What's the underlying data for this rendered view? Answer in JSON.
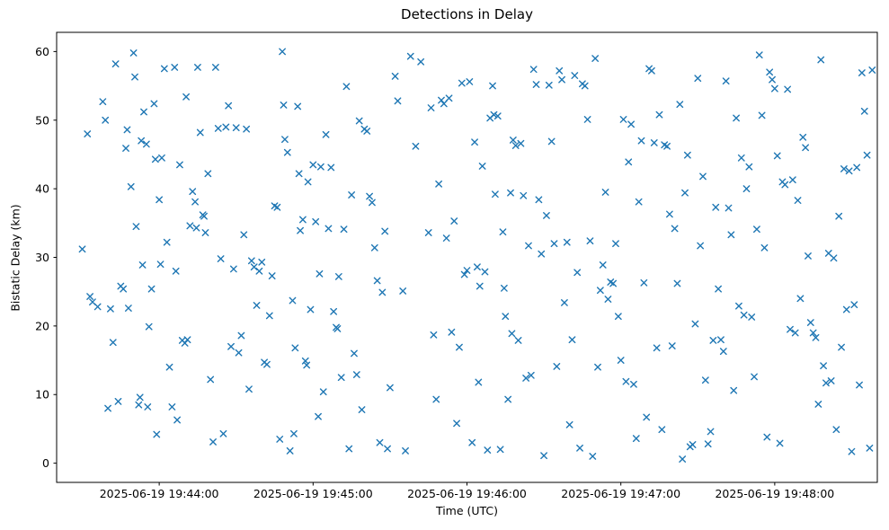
{
  "chart_data": {
    "type": "scatter",
    "title": "Detections in Delay",
    "xlabel": "Time (UTC)",
    "ylabel": "Bistatic Delay (km)",
    "marker": "x",
    "marker_color": "#1f77b4",
    "legend": "none",
    "grid": false,
    "x_axis": {
      "unit": "seconds after 2025-06-19 19:43:00 UTC",
      "range": [
        20,
        340
      ],
      "tick_values": [
        60,
        120,
        180,
        240,
        300
      ],
      "tick_labels": [
        "2025-06-19 19:44:00",
        "2025-06-19 19:45:00",
        "2025-06-19 19:46:00",
        "2025-06-19 19:47:00",
        "2025-06-19 19:48:00"
      ]
    },
    "y_axis": {
      "range": [
        -2.8,
        62.8
      ],
      "tick_values": [
        0,
        10,
        20,
        30,
        40,
        50,
        60
      ],
      "tick_labels": [
        "0",
        "10",
        "20",
        "30",
        "40",
        "50",
        "60"
      ]
    },
    "points_format": "[seconds_after_19:43:00, bistatic_delay_km]",
    "points": [
      [
        30,
        31.2
      ],
      [
        32,
        48
      ],
      [
        33,
        24.3
      ],
      [
        34,
        23.5
      ],
      [
        36,
        22.8
      ],
      [
        38,
        52.7
      ],
      [
        39,
        50
      ],
      [
        40,
        8
      ],
      [
        41,
        22.5
      ],
      [
        42,
        17.6
      ],
      [
        43,
        58.2
      ],
      [
        44,
        9
      ],
      [
        45,
        25.8
      ],
      [
        46,
        25.4
      ],
      [
        47,
        45.9
      ],
      [
        47.5,
        48.6
      ],
      [
        48,
        22.6
      ],
      [
        49,
        40.3
      ],
      [
        50,
        59.8
      ],
      [
        50.5,
        56.3
      ],
      [
        51,
        34.5
      ],
      [
        52,
        8.5
      ],
      [
        52.5,
        9.6
      ],
      [
        53,
        47
      ],
      [
        53.5,
        28.9
      ],
      [
        54,
        51.2
      ],
      [
        55,
        46.5
      ],
      [
        55.5,
        8.2
      ],
      [
        56,
        19.9
      ],
      [
        57,
        25.4
      ],
      [
        58,
        52.4
      ],
      [
        58.5,
        44.3
      ],
      [
        59,
        4.2
      ],
      [
        60,
        38.4
      ],
      [
        60.5,
        29
      ],
      [
        61,
        44.5
      ],
      [
        62,
        57.5
      ],
      [
        63,
        32.2
      ],
      [
        64,
        14
      ],
      [
        65,
        8.2
      ],
      [
        66,
        57.7
      ],
      [
        66.5,
        28
      ],
      [
        67,
        6.3
      ],
      [
        68,
        43.5
      ],
      [
        69,
        17.9
      ],
      [
        70,
        17.5
      ],
      [
        70.5,
        53.4
      ],
      [
        71,
        18
      ],
      [
        72,
        34.6
      ],
      [
        73,
        39.6
      ],
      [
        74,
        38.1
      ],
      [
        74.5,
        34.3
      ],
      [
        75,
        57.7
      ],
      [
        76,
        48.2
      ],
      [
        77,
        36.2
      ],
      [
        77.5,
        36
      ],
      [
        78,
        33.6
      ],
      [
        79,
        42.2
      ],
      [
        80,
        12.2
      ],
      [
        81,
        3.1
      ],
      [
        82,
        57.7
      ],
      [
        83,
        48.8
      ],
      [
        84,
        29.8
      ],
      [
        85,
        4.3
      ],
      [
        86,
        49
      ],
      [
        87,
        52.1
      ],
      [
        88,
        17
      ],
      [
        89,
        28.3
      ],
      [
        90,
        48.9
      ],
      [
        91,
        16.1
      ],
      [
        92,
        18.6
      ],
      [
        93,
        33.3
      ],
      [
        94,
        48.7
      ],
      [
        95,
        10.8
      ],
      [
        96,
        29.5
      ],
      [
        97,
        28.6
      ],
      [
        98,
        23
      ],
      [
        99,
        28
      ],
      [
        100,
        29.3
      ],
      [
        101,
        14.7
      ],
      [
        102,
        14.4
      ],
      [
        103,
        21.5
      ],
      [
        104,
        27.3
      ],
      [
        105,
        37.5
      ],
      [
        106,
        37.3
      ],
      [
        107,
        3.5
      ],
      [
        108,
        60
      ],
      [
        108.5,
        52.2
      ],
      [
        109,
        47.2
      ],
      [
        110,
        45.3
      ],
      [
        111,
        1.8
      ],
      [
        112,
        23.7
      ],
      [
        112.5,
        4.3
      ],
      [
        113,
        16.8
      ],
      [
        114,
        52
      ],
      [
        114.5,
        42.2
      ],
      [
        115,
        33.9
      ],
      [
        116,
        35.5
      ],
      [
        117,
        14.9
      ],
      [
        117.5,
        14.3
      ],
      [
        118,
        41
      ],
      [
        119,
        22.4
      ],
      [
        120,
        43.5
      ],
      [
        121,
        35.2
      ],
      [
        122,
        6.8
      ],
      [
        122.5,
        27.6
      ],
      [
        123,
        43.2
      ],
      [
        124,
        10.4
      ],
      [
        125,
        47.9
      ],
      [
        126,
        34.2
      ],
      [
        127,
        43.1
      ],
      [
        128,
        22.1
      ],
      [
        129,
        19.8
      ],
      [
        129.5,
        19.6
      ],
      [
        130,
        27.2
      ],
      [
        131,
        12.5
      ],
      [
        132,
        34.1
      ],
      [
        133,
        54.9
      ],
      [
        134,
        2.1
      ],
      [
        135,
        39.1
      ],
      [
        136,
        16
      ],
      [
        137,
        12.9
      ],
      [
        138,
        49.9
      ],
      [
        139,
        7.8
      ],
      [
        140,
        48.7
      ],
      [
        141,
        48.4
      ],
      [
        142,
        38.9
      ],
      [
        143,
        38
      ],
      [
        144,
        31.4
      ],
      [
        145,
        26.6
      ],
      [
        146,
        3
      ],
      [
        147,
        24.9
      ],
      [
        148,
        33.8
      ],
      [
        149,
        2.1
      ],
      [
        150,
        11
      ],
      [
        152,
        56.4
      ],
      [
        153,
        52.8
      ],
      [
        155,
        25.1
      ],
      [
        156,
        1.8
      ],
      [
        158,
        59.3
      ],
      [
        160,
        46.2
      ],
      [
        162,
        58.5
      ],
      [
        165,
        33.6
      ],
      [
        166,
        51.8
      ],
      [
        167,
        18.7
      ],
      [
        168,
        9.3
      ],
      [
        169,
        40.7
      ],
      [
        170,
        52.9
      ],
      [
        171,
        52.4
      ],
      [
        172,
        32.8
      ],
      [
        173,
        53.2
      ],
      [
        174,
        19.1
      ],
      [
        175,
        35.3
      ],
      [
        176,
        5.8
      ],
      [
        177,
        16.9
      ],
      [
        178,
        55.4
      ],
      [
        179,
        27.5
      ],
      [
        180,
        28.1
      ],
      [
        181,
        55.6
      ],
      [
        182,
        3
      ],
      [
        183,
        46.8
      ],
      [
        184,
        28.6
      ],
      [
        184.5,
        11.8
      ],
      [
        185,
        25.8
      ],
      [
        186,
        43.3
      ],
      [
        187,
        27.9
      ],
      [
        188,
        1.9
      ],
      [
        189,
        50.3
      ],
      [
        190,
        55
      ],
      [
        190.5,
        50.8
      ],
      [
        191,
        39.2
      ],
      [
        192,
        50.6
      ],
      [
        193,
        2
      ],
      [
        194,
        33.7
      ],
      [
        194.5,
        25.5
      ],
      [
        195,
        21.4
      ],
      [
        196,
        9.3
      ],
      [
        197,
        39.4
      ],
      [
        197.5,
        18.9
      ],
      [
        198,
        47.1
      ],
      [
        199,
        46.3
      ],
      [
        200,
        17.9
      ],
      [
        201,
        46.6
      ],
      [
        202,
        39
      ],
      [
        203,
        12.4
      ],
      [
        204,
        31.7
      ],
      [
        205,
        12.8
      ],
      [
        206,
        57.4
      ],
      [
        207,
        55.2
      ],
      [
        208,
        38.4
      ],
      [
        209,
        30.5
      ],
      [
        210,
        1.1
      ],
      [
        211,
        36.1
      ],
      [
        212,
        55.1
      ],
      [
        213,
        46.9
      ],
      [
        214,
        32
      ],
      [
        215,
        14.1
      ],
      [
        216,
        57.2
      ],
      [
        217,
        55.9
      ],
      [
        218,
        23.4
      ],
      [
        219,
        32.2
      ],
      [
        220,
        5.6
      ],
      [
        221,
        18
      ],
      [
        222,
        56.5
      ],
      [
        223,
        27.8
      ],
      [
        224,
        2.2
      ],
      [
        225,
        55.3
      ],
      [
        226,
        55
      ],
      [
        227,
        50.1
      ],
      [
        228,
        32.4
      ],
      [
        229,
        1
      ],
      [
        230,
        59
      ],
      [
        231,
        14
      ],
      [
        232,
        25.2
      ],
      [
        233,
        28.9
      ],
      [
        234,
        39.5
      ],
      [
        235,
        23.9
      ],
      [
        236,
        26.4
      ],
      [
        237,
        26.2
      ],
      [
        238,
        32
      ],
      [
        239,
        21.4
      ],
      [
        240,
        15
      ],
      [
        241,
        50.1
      ],
      [
        242,
        11.9
      ],
      [
        243,
        43.9
      ],
      [
        244,
        49.4
      ],
      [
        245,
        11.5
      ],
      [
        246,
        3.6
      ],
      [
        247,
        38.1
      ],
      [
        248,
        47
      ],
      [
        249,
        26.3
      ],
      [
        250,
        6.7
      ],
      [
        251,
        57.5
      ],
      [
        252,
        57.2
      ],
      [
        253,
        46.7
      ],
      [
        254,
        16.8
      ],
      [
        255,
        50.8
      ],
      [
        256,
        4.9
      ],
      [
        257,
        46.4
      ],
      [
        258,
        46.2
      ],
      [
        259,
        36.3
      ],
      [
        260,
        17.1
      ],
      [
        261,
        34.2
      ],
      [
        262,
        26.2
      ],
      [
        263,
        52.3
      ],
      [
        264,
        0.6
      ],
      [
        265,
        39.4
      ],
      [
        266,
        44.9
      ],
      [
        267,
        2.4
      ],
      [
        268,
        2.7
      ],
      [
        269,
        20.3
      ],
      [
        270,
        56.1
      ],
      [
        271,
        31.7
      ],
      [
        272,
        41.8
      ],
      [
        273,
        12.1
      ],
      [
        274,
        2.8
      ],
      [
        275,
        4.6
      ],
      [
        276,
        17.9
      ],
      [
        277,
        37.3
      ],
      [
        278,
        25.4
      ],
      [
        279,
        18
      ],
      [
        280,
        16.3
      ],
      [
        281,
        55.7
      ],
      [
        282,
        37.2
      ],
      [
        283,
        33.3
      ],
      [
        284,
        10.6
      ],
      [
        285,
        50.3
      ],
      [
        286,
        22.9
      ],
      [
        287,
        44.5
      ],
      [
        288,
        21.6
      ],
      [
        289,
        40
      ],
      [
        290,
        43.2
      ],
      [
        291,
        21.3
      ],
      [
        292,
        12.6
      ],
      [
        293,
        34.1
      ],
      [
        294,
        59.5
      ],
      [
        295,
        50.7
      ],
      [
        296,
        31.4
      ],
      [
        297,
        3.8
      ],
      [
        298,
        57
      ],
      [
        299,
        55.9
      ],
      [
        300,
        54.6
      ],
      [
        301,
        44.8
      ],
      [
        302,
        2.9
      ],
      [
        303,
        41
      ],
      [
        304,
        40.6
      ],
      [
        305,
        54.5
      ],
      [
        306,
        19.5
      ],
      [
        307,
        41.3
      ],
      [
        308,
        19
      ],
      [
        309,
        38.3
      ],
      [
        310,
        24
      ],
      [
        311,
        47.5
      ],
      [
        312,
        46
      ],
      [
        313,
        30.2
      ],
      [
        314,
        20.5
      ],
      [
        315,
        19
      ],
      [
        316,
        18.3
      ],
      [
        317,
        8.6
      ],
      [
        318,
        58.8
      ],
      [
        319,
        14.2
      ],
      [
        320,
        11.7
      ],
      [
        321,
        30.6
      ],
      [
        322,
        12
      ],
      [
        323,
        29.9
      ],
      [
        324,
        4.9
      ],
      [
        325,
        36
      ],
      [
        326,
        16.9
      ],
      [
        327,
        42.9
      ],
      [
        328,
        22.4
      ],
      [
        329,
        42.6
      ],
      [
        330,
        1.7
      ],
      [
        331,
        23.1
      ],
      [
        332,
        43.1
      ],
      [
        333,
        11.4
      ],
      [
        334,
        56.9
      ],
      [
        335,
        51.3
      ],
      [
        336,
        44.9
      ],
      [
        337,
        2.2
      ],
      [
        338,
        57.3
      ]
    ]
  }
}
